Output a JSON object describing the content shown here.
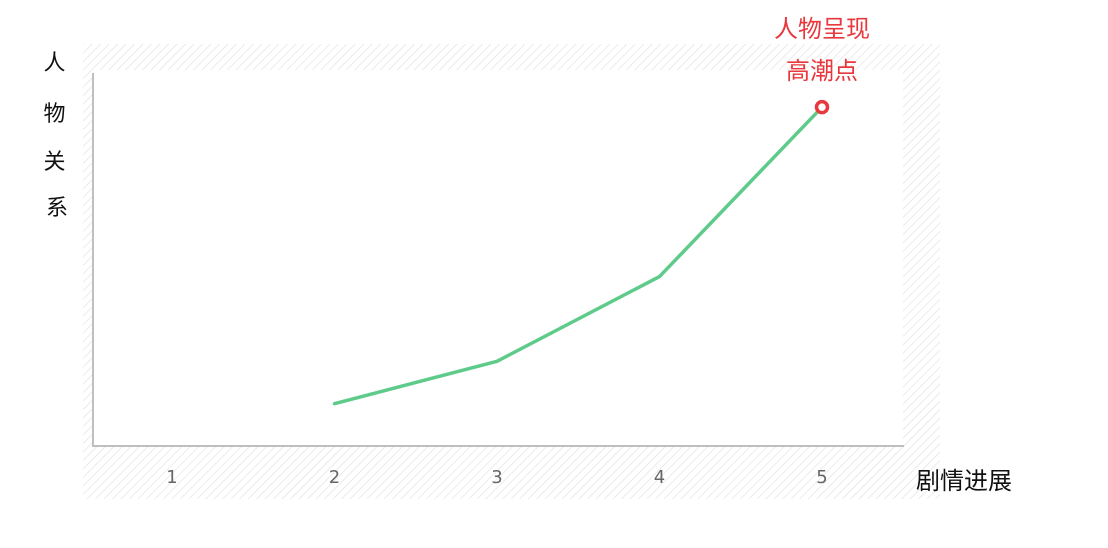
{
  "chart_data": {
    "type": "line",
    "title": "",
    "xlabel": "剧情进展",
    "ylabel": "人物关系",
    "categories": [
      "1",
      "2",
      "3",
      "4",
      "5"
    ],
    "x": [
      1,
      2,
      3,
      4,
      5
    ],
    "series": [
      {
        "values": [
          null,
          1,
          2,
          4,
          8
        ],
        "color": "#5ecb8b"
      }
    ],
    "ylim": [
      0,
      8.5
    ],
    "grid": false,
    "legend": "none",
    "annotations": [
      {
        "x": 5,
        "y": 8,
        "lines": [
          "人物呈现",
          "高潮点"
        ],
        "color": "#e8383d",
        "marker": "ring"
      }
    ],
    "colors": {
      "line": "#5ecb8b",
      "annotation": "#e8383d",
      "axis": "#bfbfbf",
      "tick_text": "#666666",
      "hatch": "#dedede"
    }
  }
}
